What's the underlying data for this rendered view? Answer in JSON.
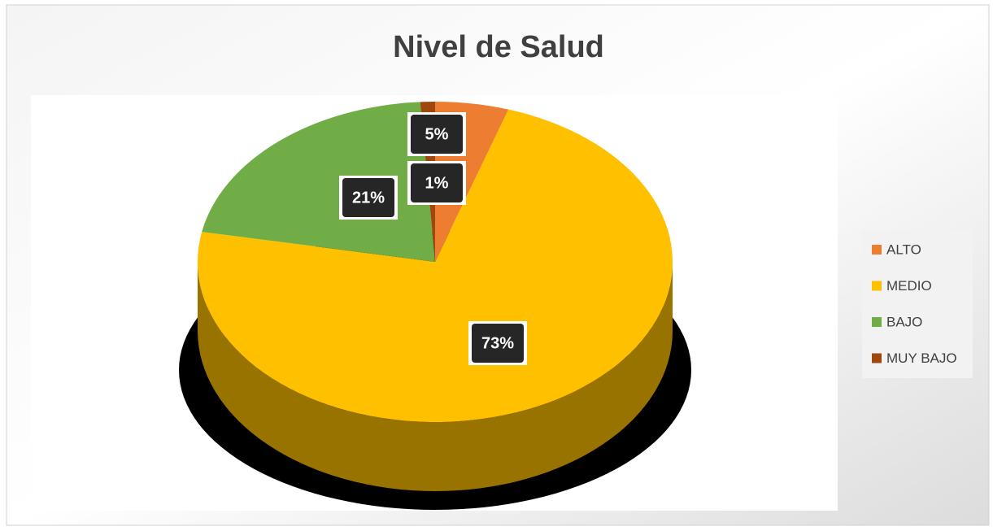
{
  "chart_data": {
    "type": "pie",
    "title": "Nivel de Salud",
    "categories": [
      "ALTO",
      "MEDIO",
      "BAJO",
      "MUY BAJO"
    ],
    "values": [
      5,
      73,
      21,
      1
    ],
    "value_labels": [
      "5%",
      "73%",
      "21%",
      "1%"
    ],
    "colors": [
      "#ed7d31",
      "#ffc000",
      "#70ad47",
      "#9e480e"
    ],
    "legend": "right"
  }
}
